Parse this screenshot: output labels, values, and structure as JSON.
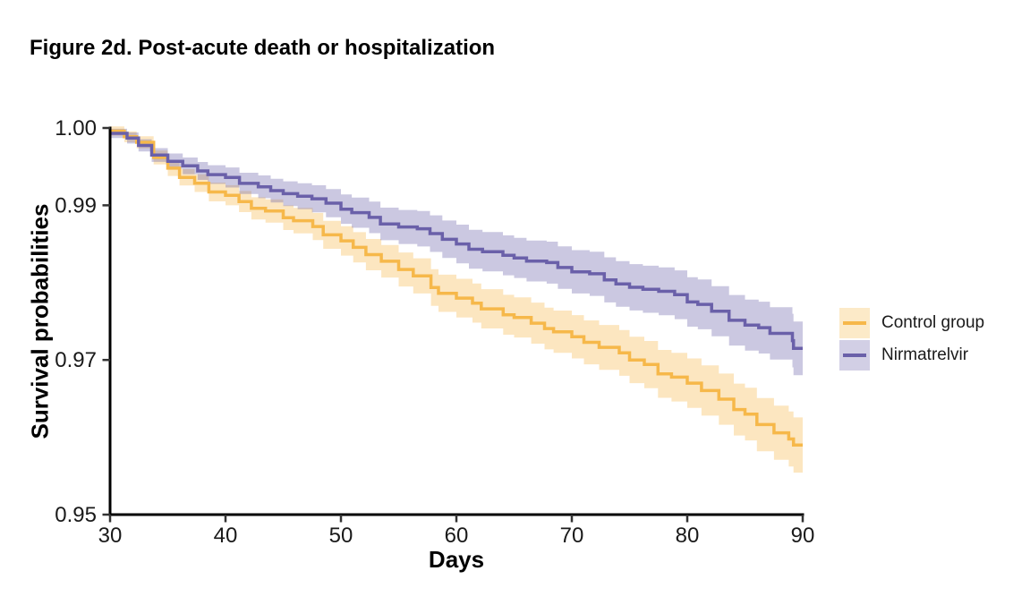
{
  "title": "Figure 2d. Post-acute death or hospitalization",
  "chart_data": {
    "type": "line",
    "subtype": "kaplan-meier-step-curves-with-ci-ribbons",
    "title": "Figure 2d. Post-acute death or hospitalization",
    "xlabel": "Days",
    "ylabel": "Survival probabilities",
    "xlim": [
      30,
      90
    ],
    "ylim": [
      0.95,
      1.0
    ],
    "x_ticks": [
      30,
      40,
      50,
      60,
      70,
      80,
      90
    ],
    "y_ticks": [
      1.0,
      0.99,
      0.97,
      0.95
    ],
    "y_tick_labels": [
      "1.00",
      "0.99",
      "0.97",
      "0.95"
    ],
    "grid": false,
    "legend_position": "right",
    "x": [
      30,
      35,
      40,
      45,
      50,
      55,
      60,
      65,
      70,
      75,
      80,
      85,
      90
    ],
    "series": [
      {
        "name": "Control group",
        "color": "#F6B84A",
        "ribbon_opacity": 0.35,
        "values": [
          0.9996,
          0.9948,
          0.9913,
          0.9884,
          0.9854,
          0.9817,
          0.978,
          0.9755,
          0.973,
          0.97,
          0.967,
          0.963,
          0.959
        ],
        "ci_half_width": [
          0.0006,
          0.001,
          0.0013,
          0.0016,
          0.0019,
          0.0022,
          0.0025,
          0.0026,
          0.0028,
          0.003,
          0.0032,
          0.0034,
          0.0036
        ]
      },
      {
        "name": "Nirmatrelvir",
        "color": "#6A60A9",
        "ribbon_opacity": 0.35,
        "values": [
          0.9993,
          0.9957,
          0.9936,
          0.9915,
          0.9895,
          0.9872,
          0.985,
          0.9832,
          0.9814,
          0.9794,
          0.9775,
          0.9745,
          0.9715
        ],
        "ci_half_width": [
          0.0006,
          0.001,
          0.0013,
          0.0016,
          0.0019,
          0.0022,
          0.0025,
          0.0026,
          0.0028,
          0.003,
          0.0032,
          0.0033,
          0.0035
        ]
      }
    ],
    "axis_color": "#000000",
    "tick_color": "#333333",
    "tick_label_color": "#1a1a1a"
  }
}
